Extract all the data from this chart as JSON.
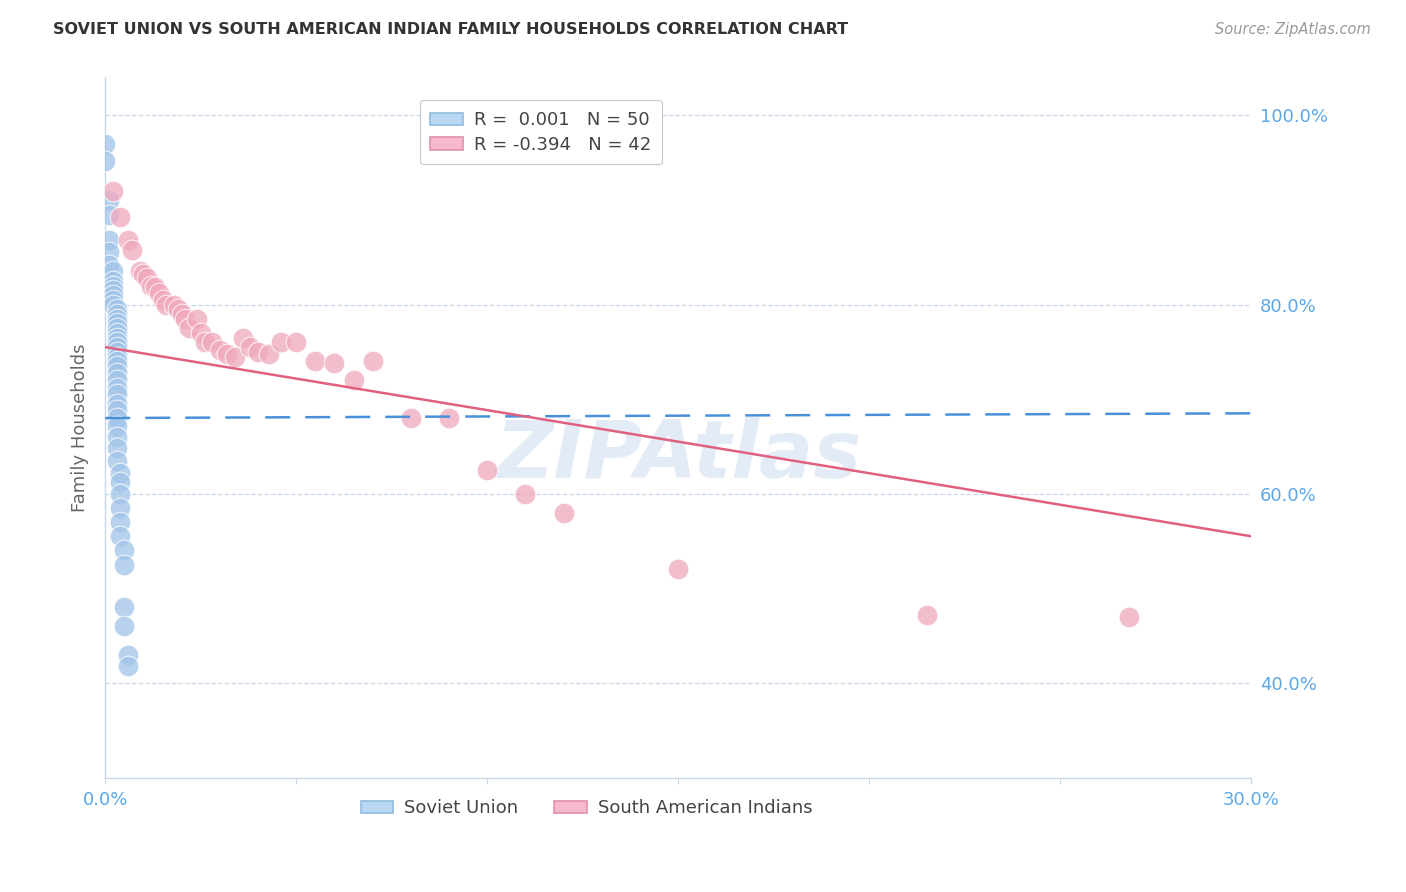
{
  "title": "SOVIET UNION VS SOUTH AMERICAN INDIAN FAMILY HOUSEHOLDS CORRELATION CHART",
  "source": "Source: ZipAtlas.com",
  "ylabel": "Family Households",
  "xlim": [
    0.0,
    0.3
  ],
  "ylim": [
    0.3,
    1.04
  ],
  "ytick_labels": [
    "40.0%",
    "60.0%",
    "80.0%",
    "100.0%"
  ],
  "ytick_values": [
    0.4,
    0.6,
    0.8,
    1.0
  ],
  "watermark": "ZIPAtlas",
  "soviet_color": "#a0c4e8",
  "south_american_color": "#f0a8bc",
  "soviet_line_color": "#4a90d9",
  "south_american_line_color": "#e06080",
  "background_color": "#ffffff",
  "grid_color": "#c8d8ea",
  "right_tick_color": "#5ba8e8",
  "soviet_union_x": [
    0.0,
    0.0,
    0.001,
    0.001,
    0.001,
    0.001,
    0.001,
    0.002,
    0.002,
    0.002,
    0.002,
    0.002,
    0.002,
    0.002,
    0.003,
    0.003,
    0.003,
    0.003,
    0.003,
    0.003,
    0.003,
    0.003,
    0.003,
    0.003,
    0.003,
    0.003,
    0.003,
    0.003,
    0.003,
    0.003,
    0.003,
    0.003,
    0.003,
    0.003,
    0.003,
    0.003,
    0.003,
    0.003,
    0.004,
    0.004,
    0.004,
    0.004,
    0.004,
    0.004,
    0.005,
    0.005,
    0.005,
    0.005,
    0.006,
    0.006
  ],
  "soviet_union_y": [
    0.97,
    0.952,
    0.91,
    0.895,
    0.868,
    0.855,
    0.842,
    0.835,
    0.825,
    0.82,
    0.815,
    0.81,
    0.805,
    0.8,
    0.795,
    0.79,
    0.785,
    0.78,
    0.775,
    0.77,
    0.765,
    0.76,
    0.755,
    0.75,
    0.745,
    0.74,
    0.735,
    0.728,
    0.72,
    0.712,
    0.705,
    0.695,
    0.688,
    0.68,
    0.672,
    0.66,
    0.648,
    0.635,
    0.622,
    0.612,
    0.6,
    0.585,
    0.57,
    0.555,
    0.54,
    0.525,
    0.48,
    0.46,
    0.43,
    0.418
  ],
  "south_american_x": [
    0.002,
    0.004,
    0.006,
    0.007,
    0.009,
    0.01,
    0.011,
    0.012,
    0.013,
    0.014,
    0.015,
    0.016,
    0.018,
    0.019,
    0.02,
    0.021,
    0.022,
    0.024,
    0.025,
    0.026,
    0.028,
    0.03,
    0.032,
    0.034,
    0.036,
    0.038,
    0.04,
    0.043,
    0.046,
    0.05,
    0.055,
    0.06,
    0.065,
    0.07,
    0.08,
    0.09,
    0.1,
    0.11,
    0.12,
    0.15,
    0.215,
    0.268
  ],
  "south_american_y": [
    0.92,
    0.892,
    0.868,
    0.858,
    0.835,
    0.832,
    0.828,
    0.82,
    0.818,
    0.812,
    0.805,
    0.8,
    0.8,
    0.795,
    0.79,
    0.785,
    0.775,
    0.785,
    0.77,
    0.76,
    0.76,
    0.752,
    0.748,
    0.745,
    0.765,
    0.755,
    0.75,
    0.748,
    0.76,
    0.76,
    0.74,
    0.738,
    0.72,
    0.74,
    0.68,
    0.68,
    0.625,
    0.6,
    0.58,
    0.52,
    0.472,
    0.47
  ],
  "soviet_trend_x": [
    0.0,
    0.3
  ],
  "soviet_trend_y": [
    0.68,
    0.685
  ],
  "south_trend_x": [
    0.0,
    0.3
  ],
  "south_trend_y": [
    0.755,
    0.555
  ]
}
